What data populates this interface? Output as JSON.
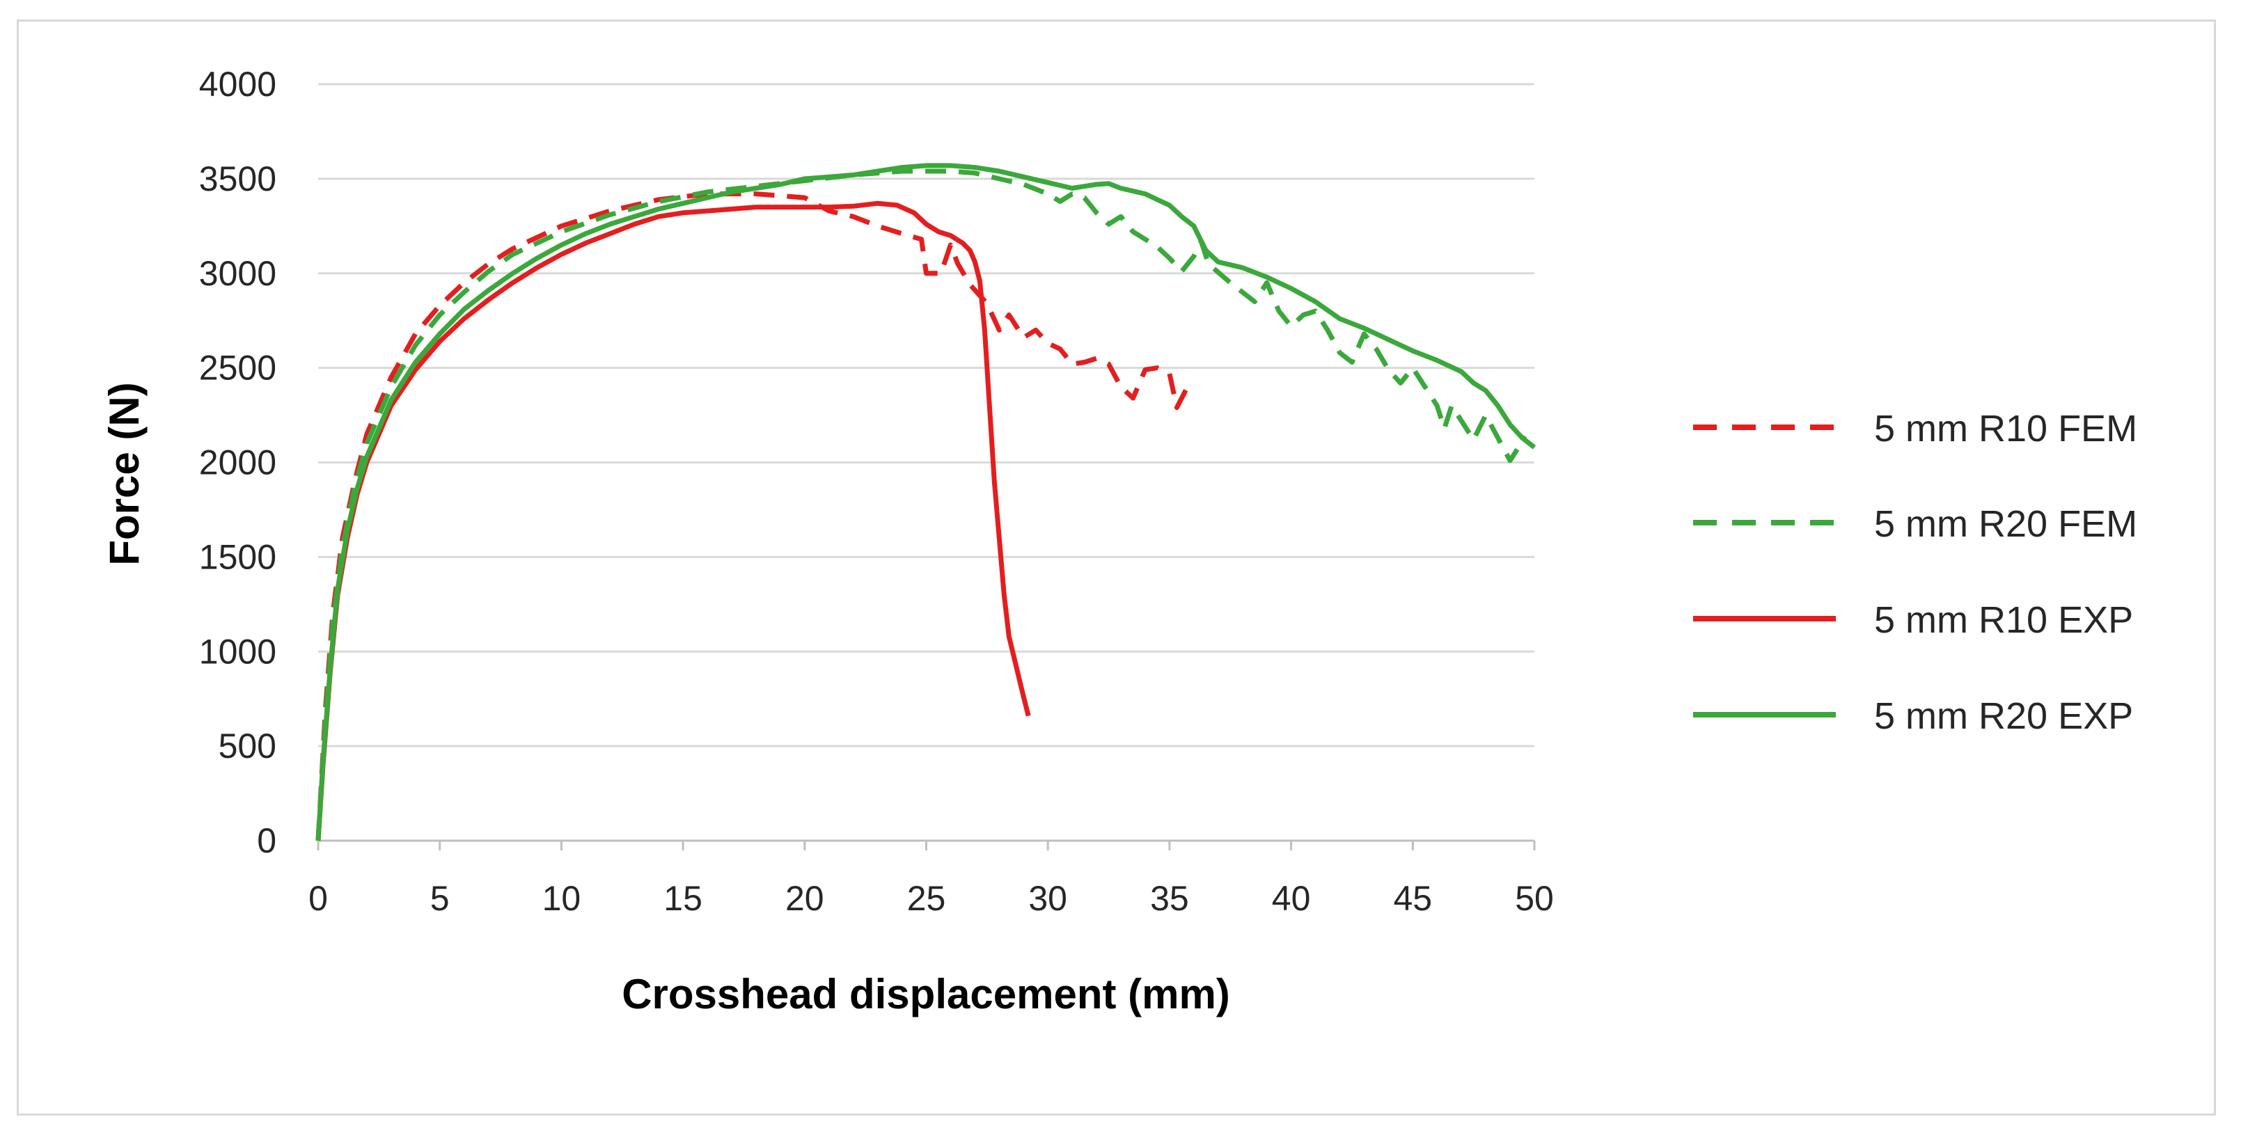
{
  "chart_data": {
    "type": "line",
    "title": "",
    "xlabel": "Crosshead displacement (mm)",
    "ylabel": "Force (N)",
    "xlim": [
      0,
      50
    ],
    "ylim": [
      0,
      4000
    ],
    "x_ticks": [
      0,
      5,
      10,
      15,
      20,
      25,
      30,
      35,
      40,
      45,
      50
    ],
    "y_ticks": [
      0,
      500,
      1000,
      1500,
      2000,
      2500,
      3000,
      3500,
      4000
    ],
    "grid": "horizontal",
    "legend_position": "right",
    "series": [
      {
        "name": "5 mm R10 FEM",
        "color": "#e41e1e",
        "dashed": true,
        "points": [
          [
            0,
            0
          ],
          [
            0.3,
            700
          ],
          [
            0.6,
            1200
          ],
          [
            1,
            1600
          ],
          [
            1.5,
            1900
          ],
          [
            2,
            2150
          ],
          [
            3,
            2450
          ],
          [
            4,
            2680
          ],
          [
            5,
            2830
          ],
          [
            6,
            2950
          ],
          [
            7,
            3050
          ],
          [
            8,
            3130
          ],
          [
            10,
            3250
          ],
          [
            12,
            3330
          ],
          [
            14,
            3390
          ],
          [
            16,
            3420
          ],
          [
            18,
            3420
          ],
          [
            19,
            3410
          ],
          [
            20,
            3400
          ],
          [
            21,
            3330
          ],
          [
            22,
            3300
          ],
          [
            23,
            3250
          ],
          [
            24,
            3210
          ],
          [
            24.8,
            3180
          ],
          [
            25,
            3000
          ],
          [
            25.6,
            3000
          ],
          [
            26,
            3150
          ],
          [
            26.3,
            3050
          ],
          [
            26.8,
            2940
          ],
          [
            27.5,
            2840
          ],
          [
            28,
            2700
          ],
          [
            28.4,
            2780
          ],
          [
            29,
            2660
          ],
          [
            29.5,
            2700
          ],
          [
            30,
            2630
          ],
          [
            30.5,
            2600
          ],
          [
            31,
            2520
          ],
          [
            31.5,
            2530
          ],
          [
            32,
            2550
          ],
          [
            32.5,
            2520
          ],
          [
            33,
            2400
          ],
          [
            33.5,
            2340
          ],
          [
            34,
            2490
          ],
          [
            34.5,
            2500
          ],
          [
            35,
            2470
          ],
          [
            35.3,
            2290
          ],
          [
            35.7,
            2390
          ]
        ]
      },
      {
        "name": "5 mm R20 FEM",
        "color": "#3aa83a",
        "dashed": true,
        "points": [
          [
            0,
            0
          ],
          [
            0.3,
            650
          ],
          [
            0.6,
            1150
          ],
          [
            1,
            1550
          ],
          [
            1.5,
            1870
          ],
          [
            2,
            2100
          ],
          [
            3,
            2400
          ],
          [
            4,
            2620
          ],
          [
            5,
            2780
          ],
          [
            6,
            2900
          ],
          [
            7,
            3010
          ],
          [
            8,
            3100
          ],
          [
            10,
            3220
          ],
          [
            12,
            3310
          ],
          [
            14,
            3380
          ],
          [
            16,
            3430
          ],
          [
            18,
            3460
          ],
          [
            20,
            3490
          ],
          [
            22,
            3520
          ],
          [
            24,
            3540
          ],
          [
            26,
            3540
          ],
          [
            27,
            3530
          ],
          [
            28,
            3500
          ],
          [
            29,
            3470
          ],
          [
            30,
            3420
          ],
          [
            30.5,
            3380
          ],
          [
            31,
            3420
          ],
          [
            31.5,
            3400
          ],
          [
            32,
            3320
          ],
          [
            32.5,
            3260
          ],
          [
            33,
            3300
          ],
          [
            33.5,
            3220
          ],
          [
            34,
            3180
          ],
          [
            34.5,
            3140
          ],
          [
            35,
            3080
          ],
          [
            35.5,
            3010
          ],
          [
            36,
            3090
          ],
          [
            36.3,
            3170
          ],
          [
            36.6,
            3050
          ],
          [
            37.5,
            2950
          ],
          [
            38,
            2900
          ],
          [
            38.5,
            2850
          ],
          [
            39,
            2950
          ],
          [
            39.5,
            2800
          ],
          [
            40,
            2720
          ],
          [
            40.5,
            2780
          ],
          [
            41,
            2800
          ],
          [
            41.5,
            2700
          ],
          [
            42,
            2580
          ],
          [
            42.5,
            2530
          ],
          [
            43,
            2680
          ],
          [
            43.5,
            2600
          ],
          [
            44,
            2490
          ],
          [
            44.5,
            2420
          ],
          [
            45,
            2500
          ],
          [
            45.5,
            2400
          ],
          [
            46,
            2300
          ],
          [
            46.3,
            2180
          ],
          [
            46.6,
            2300
          ],
          [
            47,
            2220
          ],
          [
            47.5,
            2120
          ],
          [
            48,
            2250
          ],
          [
            48.5,
            2130
          ],
          [
            49,
            2010
          ],
          [
            49.3,
            2070
          ],
          [
            49.6,
            2140
          ]
        ]
      },
      {
        "name": "5 mm R10 EXP",
        "color": "#e41e1e",
        "dashed": false,
        "points": [
          [
            0,
            0
          ],
          [
            0.2,
            400
          ],
          [
            0.5,
            900
          ],
          [
            0.8,
            1300
          ],
          [
            1.2,
            1600
          ],
          [
            1.6,
            1830
          ],
          [
            2,
            2000
          ],
          [
            3,
            2300
          ],
          [
            4,
            2490
          ],
          [
            5,
            2640
          ],
          [
            6,
            2760
          ],
          [
            7,
            2860
          ],
          [
            8,
            2950
          ],
          [
            9,
            3030
          ],
          [
            10,
            3100
          ],
          [
            11,
            3160
          ],
          [
            12,
            3210
          ],
          [
            13,
            3260
          ],
          [
            14,
            3300
          ],
          [
            15,
            3320
          ],
          [
            16,
            3330
          ],
          [
            17,
            3340
          ],
          [
            18,
            3350
          ],
          [
            19,
            3350
          ],
          [
            20,
            3350
          ],
          [
            21,
            3350
          ],
          [
            22,
            3355
          ],
          [
            23,
            3370
          ],
          [
            23.8,
            3360
          ],
          [
            24.5,
            3320
          ],
          [
            25,
            3260
          ],
          [
            25.5,
            3220
          ],
          [
            26,
            3200
          ],
          [
            26.5,
            3160
          ],
          [
            26.8,
            3120
          ],
          [
            27,
            3060
          ],
          [
            27.2,
            2960
          ],
          [
            27.4,
            2700
          ],
          [
            27.6,
            2300
          ],
          [
            27.8,
            1900
          ],
          [
            28,
            1600
          ],
          [
            28.2,
            1300
          ],
          [
            28.4,
            1080
          ],
          [
            28.7,
            920
          ],
          [
            29,
            760
          ],
          [
            29.2,
            660
          ]
        ]
      },
      {
        "name": "5 mm R20 EXP",
        "color": "#3aa83a",
        "dashed": false,
        "points": [
          [
            0,
            0
          ],
          [
            0.2,
            420
          ],
          [
            0.5,
            920
          ],
          [
            0.8,
            1330
          ],
          [
            1.2,
            1640
          ],
          [
            1.6,
            1860
          ],
          [
            2,
            2030
          ],
          [
            3,
            2330
          ],
          [
            4,
            2530
          ],
          [
            5,
            2680
          ],
          [
            6,
            2810
          ],
          [
            7,
            2910
          ],
          [
            8,
            3000
          ],
          [
            9,
            3080
          ],
          [
            10,
            3150
          ],
          [
            11,
            3210
          ],
          [
            12,
            3260
          ],
          [
            13,
            3300
          ],
          [
            14,
            3340
          ],
          [
            15,
            3370
          ],
          [
            16,
            3400
          ],
          [
            17,
            3430
          ],
          [
            18,
            3450
          ],
          [
            19,
            3470
          ],
          [
            20,
            3500
          ],
          [
            21,
            3510
          ],
          [
            22,
            3520
          ],
          [
            23,
            3540
          ],
          [
            24,
            3560
          ],
          [
            25,
            3570
          ],
          [
            26,
            3570
          ],
          [
            27,
            3560
          ],
          [
            28,
            3540
          ],
          [
            29,
            3510
          ],
          [
            30,
            3480
          ],
          [
            31,
            3450
          ],
          [
            31.5,
            3460
          ],
          [
            32,
            3470
          ],
          [
            32.5,
            3475
          ],
          [
            33,
            3450
          ],
          [
            34,
            3420
          ],
          [
            34.5,
            3390
          ],
          [
            35,
            3360
          ],
          [
            35.5,
            3300
          ],
          [
            36,
            3250
          ],
          [
            36.5,
            3120
          ],
          [
            37,
            3060
          ],
          [
            38,
            3030
          ],
          [
            39,
            2980
          ],
          [
            40,
            2920
          ],
          [
            41,
            2850
          ],
          [
            42,
            2760
          ],
          [
            43,
            2710
          ],
          [
            44,
            2650
          ],
          [
            45,
            2590
          ],
          [
            46,
            2540
          ],
          [
            47,
            2480
          ],
          [
            47.5,
            2420
          ],
          [
            48,
            2380
          ],
          [
            48.5,
            2300
          ],
          [
            49,
            2200
          ],
          [
            49.5,
            2130
          ],
          [
            50,
            2080
          ]
        ]
      }
    ]
  }
}
